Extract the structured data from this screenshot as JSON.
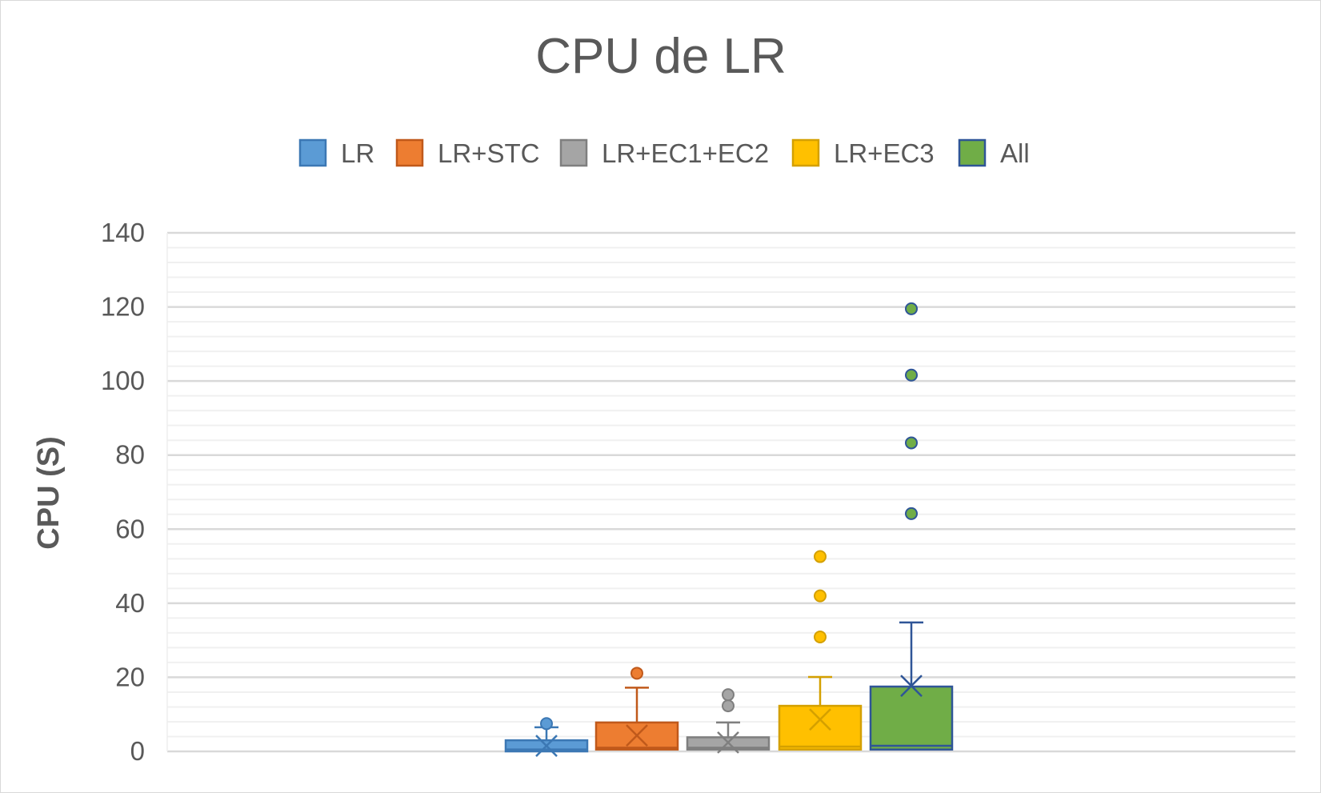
{
  "chart_data": {
    "type": "box",
    "title": "CPU de LR",
    "xlabel": "",
    "ylabel": "CPU (S)",
    "ylim": [
      0,
      140
    ],
    "ytick_step": 20,
    "minor_step": 4,
    "grid": true,
    "legend_position": "top",
    "series": [
      {
        "name": "LR",
        "color": "#5b9bd5",
        "stroke": "#3c78b4",
        "min": 0,
        "q1": 0,
        "median": 0.5,
        "q3": 3,
        "max": 6.5,
        "mean": 1.5,
        "outliers": [
          7.5
        ]
      },
      {
        "name": "LR+STC",
        "color": "#ed7d31",
        "stroke": "#c0591b",
        "min": 0,
        "q1": 0.5,
        "median": 1,
        "q3": 7.8,
        "max": 17.2,
        "mean": 4.3,
        "outliers": [
          21.1
        ]
      },
      {
        "name": "LR+EC1+EC2",
        "color": "#a5a5a5",
        "stroke": "#7f7f7f",
        "min": 0,
        "q1": 0.5,
        "median": 1,
        "q3": 3.8,
        "max": 7.8,
        "mean": 2.4,
        "outliers": [
          12.3,
          15.3
        ]
      },
      {
        "name": "LR+EC3",
        "color": "#ffc000",
        "stroke": "#d4a000",
        "min": 0,
        "q1": 0.5,
        "median": 1.3,
        "q3": 12.3,
        "max": 20.1,
        "mean": 8.6,
        "outliers": [
          30.9,
          42,
          52.6
        ]
      },
      {
        "name": "All",
        "color": "#70ad47",
        "stroke": "#2f5597",
        "min": 0,
        "q1": 0.5,
        "median": 1.5,
        "q3": 17.5,
        "max": 34.8,
        "mean": 17.7,
        "outliers": [
          64.2,
          83.3,
          101.6,
          119.5
        ]
      }
    ]
  }
}
